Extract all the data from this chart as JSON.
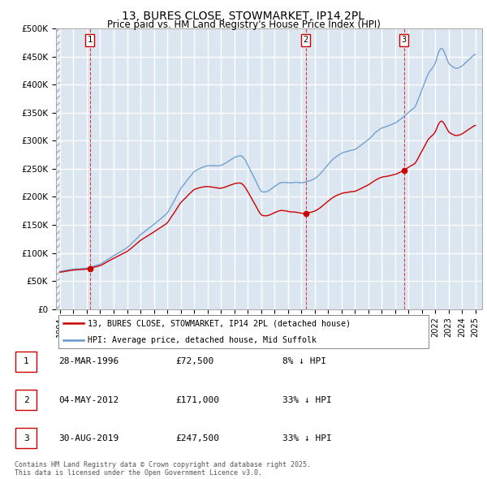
{
  "title1": "13, BURES CLOSE, STOWMARKET, IP14 2PL",
  "title2": "Price paid vs. HM Land Registry's House Price Index (HPI)",
  "background_color": "#dce6f1",
  "plot_bg_color": "#dce6f1",
  "grid_color": "#ffffff",
  "ylim": [
    0,
    500000
  ],
  "yticks": [
    0,
    50000,
    100000,
    150000,
    200000,
    250000,
    300000,
    350000,
    400000,
    450000,
    500000
  ],
  "ytick_labels": [
    "£0",
    "£50K",
    "£100K",
    "£150K",
    "£200K",
    "£250K",
    "£300K",
    "£350K",
    "£400K",
    "£450K",
    "£500K"
  ],
  "xlim_start": 1993.7,
  "xlim_end": 2025.5,
  "xticks": [
    1994,
    1995,
    1996,
    1997,
    1998,
    1999,
    2000,
    2001,
    2002,
    2003,
    2004,
    2005,
    2006,
    2007,
    2008,
    2009,
    2010,
    2011,
    2012,
    2013,
    2014,
    2015,
    2016,
    2017,
    2018,
    2019,
    2020,
    2021,
    2022,
    2023,
    2024,
    2025
  ],
  "legend_line1": "13, BURES CLOSE, STOWMARKET, IP14 2PL (detached house)",
  "legend_line2": "HPI: Average price, detached house, Mid Suffolk",
  "line1_color": "#cc0000",
  "line2_color": "#6699cc",
  "transaction1_date": 1996.22,
  "transaction1_label": "1",
  "transaction1_price": 72500,
  "transaction1_display": "£72,500",
  "transaction1_pct": "8% ↓ HPI",
  "transaction1_datestr": "28-MAR-1996",
  "transaction2_date": 2012.34,
  "transaction2_label": "2",
  "transaction2_price": 171000,
  "transaction2_display": "£171,000",
  "transaction2_pct": "33% ↓ HPI",
  "transaction2_datestr": "04-MAY-2012",
  "transaction3_date": 2019.66,
  "transaction3_label": "3",
  "transaction3_price": 247500,
  "transaction3_display": "£247,500",
  "transaction3_pct": "33% ↓ HPI",
  "transaction3_datestr": "30-AUG-2019",
  "footnote": "Contains HM Land Registry data © Crown copyright and database right 2025.\nThis data is licensed under the Open Government Licence v3.0."
}
